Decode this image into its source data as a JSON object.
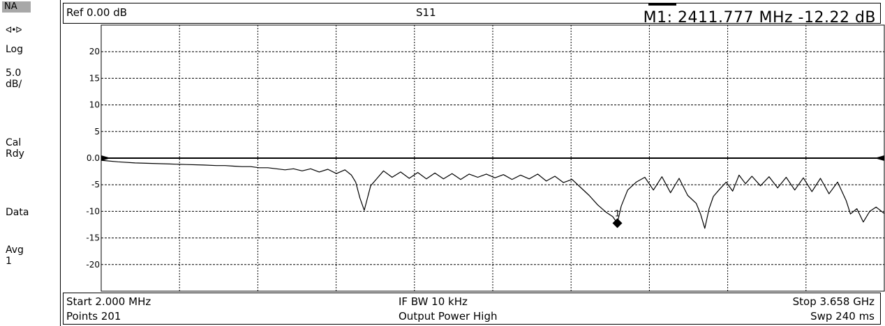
{
  "instrument": {
    "mode_tag": "NA",
    "knob_symbol": "ᐊ•ᐅ",
    "format": "Log",
    "scale_line1": "5.0",
    "scale_line2": "dB/",
    "cal_line1": "Cal",
    "cal_line2": "Rdy",
    "data_label": "Data",
    "avg_line1": "Avg",
    "avg_line2": "1"
  },
  "header": {
    "reference": "Ref 0.00 dB",
    "measurement": "S11",
    "marker_readout": "M1:  2411.777 MHz  -12.22 dB"
  },
  "footer": {
    "start": "Start 2.000 MHz",
    "points": "Points 201",
    "if_bw": "IF BW 10 kHz",
    "output_power": "Output Power High",
    "stop": "Stop 3.658 GHz",
    "sweep": "Swp 240 ms"
  },
  "colors": {
    "trace": "#000000",
    "grid": "#000000",
    "background": "#ffffff",
    "tag": "#a8a8a8"
  },
  "chart_data": {
    "type": "line",
    "title": "S11",
    "xlabel": "",
    "ylabel": "",
    "x_unit": "MHz",
    "xlim": [
      2.0,
      3658.0
    ],
    "ylim": [
      -25,
      25
    ],
    "grid": true,
    "ytick_labels": [
      "20",
      "15",
      "10",
      "5",
      "0.0",
      "-5",
      "-10",
      "-15",
      "-20"
    ],
    "ytick_values": [
      20,
      15,
      10,
      5,
      0,
      -5,
      -10,
      -15,
      -20
    ],
    "reference_level": 0.0,
    "series": [
      {
        "x": [
          2,
          80,
          160,
          240,
          320,
          400,
          480,
          540,
          580,
          620,
          660,
          700,
          740,
          780,
          820,
          860,
          900,
          940,
          980,
          1020,
          1060,
          1100,
          1140,
          1170,
          1190,
          1210,
          1230,
          1260,
          1290,
          1320,
          1360,
          1400,
          1440,
          1480,
          1520,
          1560,
          1600,
          1640,
          1680,
          1720,
          1760,
          1800,
          1840,
          1880,
          1920,
          1960,
          2000,
          2040,
          2080,
          2120,
          2160,
          2200,
          2240,
          2280,
          2320,
          2360,
          2390,
          2411.777,
          2430,
          2460,
          2500,
          2540,
          2580,
          2620,
          2660,
          2700,
          2740,
          2780,
          2800,
          2820,
          2840,
          2860,
          2890,
          2920,
          2950,
          2980,
          3010,
          3040,
          3080,
          3120,
          3160,
          3200,
          3240,
          3280,
          3320,
          3360,
          3400,
          3440,
          3480,
          3500,
          3530,
          3560,
          3590,
          3620,
          3658
        ],
        "y": [
          -0.4,
          -0.7,
          -0.9,
          -1.0,
          -1.1,
          -1.2,
          -1.3,
          -1.4,
          -1.4,
          -1.5,
          -1.6,
          -1.6,
          -1.8,
          -1.8,
          -2.0,
          -2.2,
          -2.0,
          -2.4,
          -2.0,
          -2.6,
          -2.1,
          -2.9,
          -2.2,
          -3.2,
          -4.5,
          -7.5,
          -9.8,
          -5.2,
          -3.8,
          -2.4,
          -3.6,
          -2.6,
          -3.8,
          -2.7,
          -3.9,
          -2.8,
          -3.9,
          -2.9,
          -4.0,
          -3.0,
          -3.6,
          -3.0,
          -3.7,
          -3.1,
          -4.0,
          -3.2,
          -3.9,
          -3.0,
          -4.3,
          -3.4,
          -4.6,
          -4.0,
          -5.5,
          -7.0,
          -8.8,
          -10.2,
          -11.0,
          -12.22,
          -9.0,
          -6.0,
          -4.5,
          -3.6,
          -6.0,
          -3.5,
          -6.5,
          -3.8,
          -7.0,
          -8.5,
          -10.5,
          -13.2,
          -9.5,
          -7.2,
          -5.8,
          -4.5,
          -6.2,
          -3.2,
          -4.8,
          -3.4,
          -5.2,
          -3.5,
          -5.6,
          -3.6,
          -6.0,
          -3.7,
          -6.3,
          -3.8,
          -6.7,
          -4.5,
          -8.0,
          -10.5,
          -9.5,
          -12.0,
          -10.0,
          -9.2,
          -10.4
        ]
      }
    ],
    "markers": [
      {
        "name": "M1",
        "label": "1",
        "x": 2411.777,
        "y": -12.22
      }
    ]
  }
}
